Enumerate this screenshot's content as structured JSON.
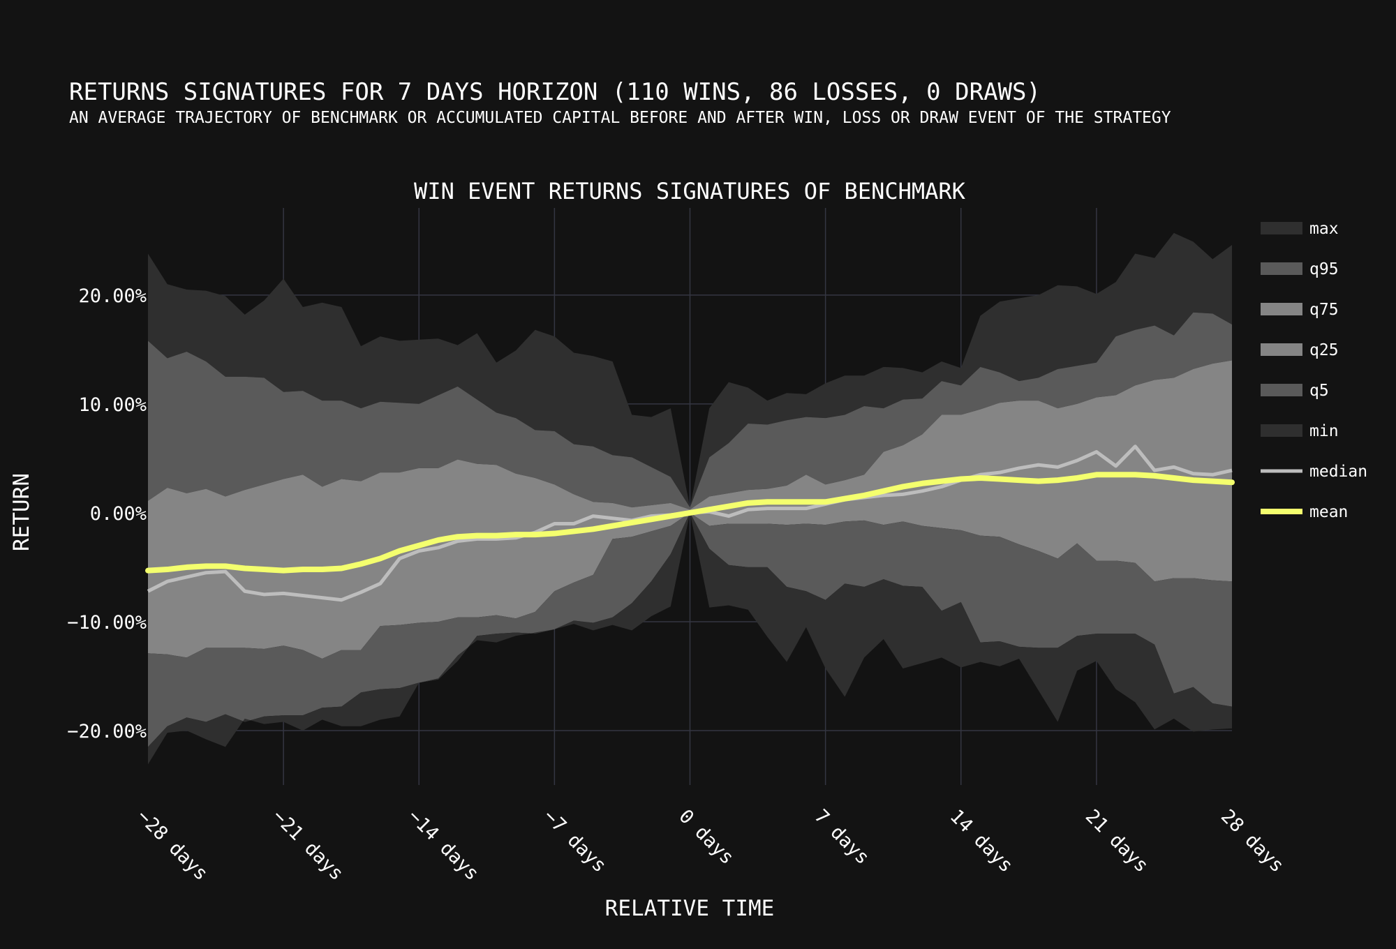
{
  "title": "RETURNS SIGNATURES FOR 7 DAYS HORIZON (110 WINS, 86 LOSSES, 0 DRAWS)",
  "subtitle": "AN AVERAGE TRAJECTORY OF BENCHMARK OR ACCUMULATED CAPITAL BEFORE AND AFTER WIN, LOSS OR DRAW EVENT OF THE STRATEGY",
  "colors": {
    "background": "#131313",
    "grid": "#343642",
    "band_outer": "#2f2f2f",
    "band_mid": "#5a5a5a",
    "band_inner": "#858585",
    "median": "#bdbdbd",
    "mean": "#f4ff6e"
  },
  "chart_data": {
    "type": "area",
    "title": "WIN EVENT RETURNS SIGNATURES OF BENCHMARK",
    "xlabel": "RELATIVE TIME",
    "ylabel": "RETURN",
    "xlim": [
      -28,
      28
    ],
    "ylim": [
      -25,
      28
    ],
    "x_ticks": [
      -28,
      -21,
      -14,
      -7,
      0,
      7,
      14,
      21,
      28
    ],
    "x_tick_labels": [
      "−28 days",
      "−21 days",
      "−14 days",
      "−7 days",
      "0 days",
      "7 days",
      "14 days",
      "21 days",
      "28 days"
    ],
    "y_ticks": [
      20,
      10,
      0,
      -10,
      -20
    ],
    "y_tick_labels": [
      "20.00%",
      "10.00%",
      "0.00%",
      "−10.00%",
      "−20.00%"
    ],
    "grid": true,
    "legend_position": "right",
    "legend": [
      "max",
      "q95",
      "q75",
      "q25",
      "q5",
      "min",
      "median",
      "mean"
    ],
    "x": [
      -28,
      -27,
      -26,
      -25,
      -24,
      -23,
      -22,
      -21,
      -20,
      -19,
      -18,
      -17,
      -16,
      -15,
      -14,
      -13,
      -12,
      -11,
      -10,
      -9,
      -8,
      -7,
      -6,
      -5,
      -4,
      -3,
      -2,
      -1,
      0,
      1,
      2,
      3,
      4,
      5,
      6,
      7,
      8,
      9,
      10,
      11,
      12,
      13,
      14,
      15,
      16,
      17,
      18,
      19,
      20,
      21,
      22,
      23,
      24,
      25,
      26,
      27,
      28
    ],
    "series": [
      {
        "name": "max",
        "values": [
          23.8,
          21.0,
          20.5,
          20.4,
          19.9,
          18.2,
          19.5,
          21.5,
          18.9,
          19.3,
          18.9,
          15.3,
          16.2,
          15.8,
          15.9,
          16.0,
          15.4,
          16.5,
          13.8,
          14.9,
          16.8,
          16.2,
          14.7,
          14.4,
          13.9,
          9.0,
          8.8,
          9.6,
          0.5,
          9.6,
          12.0,
          11.5,
          10.3,
          11.0,
          10.9,
          11.9,
          12.6,
          12.6,
          13.4,
          13.3,
          12.9,
          13.9,
          13.3,
          18.1,
          19.4,
          19.7,
          20.0,
          20.9,
          20.8,
          20.1,
          21.2,
          23.8,
          23.4,
          25.7,
          24.9,
          23.3,
          24.6
        ]
      },
      {
        "name": "q95",
        "values": [
          15.8,
          14.2,
          14.8,
          13.9,
          12.5,
          12.5,
          12.4,
          11.1,
          11.2,
          10.3,
          10.3,
          9.6,
          10.2,
          10.1,
          10.0,
          10.8,
          11.6,
          10.4,
          9.2,
          8.7,
          7.6,
          7.5,
          6.3,
          6.1,
          5.3,
          5.1,
          4.2,
          3.3,
          0.5,
          5.1,
          6.4,
          8.2,
          8.1,
          8.5,
          8.8,
          8.7,
          9.0,
          9.8,
          9.6,
          10.4,
          10.5,
          12.1,
          11.7,
          13.4,
          12.9,
          12.1,
          12.4,
          13.2,
          13.5,
          13.8,
          16.2,
          16.8,
          17.2,
          16.3,
          18.4,
          18.3,
          17.3
        ]
      },
      {
        "name": "q75",
        "values": [
          1.1,
          2.3,
          1.8,
          2.2,
          1.5,
          2.1,
          2.6,
          3.1,
          3.5,
          2.4,
          3.1,
          2.9,
          3.7,
          3.7,
          4.1,
          4.1,
          4.9,
          4.5,
          4.4,
          3.6,
          3.2,
          2.6,
          1.7,
          1.0,
          0.9,
          0.5,
          0.7,
          0.9,
          0.3,
          1.5,
          1.8,
          2.1,
          2.2,
          2.5,
          3.5,
          2.6,
          3.0,
          3.5,
          5.6,
          6.2,
          7.2,
          9.0,
          9.0,
          9.5,
          10.1,
          10.3,
          10.3,
          9.6,
          10.0,
          10.6,
          10.8,
          11.7,
          12.2,
          12.4,
          13.2,
          13.7,
          14.0
        ]
      },
      {
        "name": "q25",
        "values": [
          -12.9,
          -13.0,
          -13.3,
          -12.4,
          -12.4,
          -12.4,
          -12.5,
          -12.2,
          -12.6,
          -13.4,
          -12.6,
          -12.6,
          -10.4,
          -10.3,
          -10.1,
          -10.0,
          -9.6,
          -9.6,
          -9.4,
          -9.7,
          -9.1,
          -7.2,
          -6.4,
          -5.7,
          -2.4,
          -2.2,
          -1.7,
          -1.2,
          0.0,
          -1.2,
          -1.0,
          -1.0,
          -1.0,
          -1.1,
          -1.0,
          -1.1,
          -0.8,
          -0.7,
          -1.1,
          -0.8,
          -1.2,
          -1.4,
          -1.6,
          -2.1,
          -2.2,
          -2.9,
          -3.5,
          -4.2,
          -2.8,
          -4.4,
          -4.4,
          -4.6,
          -6.3,
          -6.0,
          -6.0,
          -6.2,
          -6.3
        ]
      },
      {
        "name": "q5",
        "values": [
          -21.5,
          -19.6,
          -18.8,
          -19.2,
          -18.5,
          -19.2,
          -18.7,
          -18.6,
          -18.6,
          -17.9,
          -17.8,
          -16.5,
          -16.2,
          -16.1,
          -15.6,
          -15.3,
          -13.6,
          -11.3,
          -11.1,
          -11.0,
          -11.1,
          -10.7,
          -9.9,
          -10.1,
          -9.6,
          -8.3,
          -6.3,
          -3.8,
          0.0,
          -3.3,
          -4.8,
          -5.0,
          -5.0,
          -6.8,
          -7.2,
          -8.0,
          -6.5,
          -6.8,
          -6.1,
          -6.7,
          -6.8,
          -9.0,
          -8.2,
          -11.9,
          -11.8,
          -12.3,
          -12.4,
          -12.4,
          -11.3,
          -11.1,
          -11.1,
          -11.1,
          -12.1,
          -16.6,
          -16.0,
          -17.5,
          -17.8
        ]
      },
      {
        "name": "min",
        "values": [
          -23.1,
          -20.2,
          -20.0,
          -20.8,
          -21.5,
          -18.9,
          -19.4,
          -19.2,
          -20.0,
          -19.0,
          -19.6,
          -19.6,
          -19.0,
          -18.7,
          -15.6,
          -15.2,
          -13.1,
          -11.7,
          -11.9,
          -11.3,
          -11.0,
          -10.7,
          -10.2,
          -10.8,
          -10.3,
          -10.8,
          -9.5,
          -8.6,
          0.0,
          -8.7,
          -8.5,
          -8.9,
          -11.4,
          -13.7,
          -10.5,
          -14.3,
          -16.9,
          -13.3,
          -11.6,
          -14.3,
          -13.8,
          -13.3,
          -14.2,
          -13.7,
          -14.1,
          -13.4,
          -16.3,
          -19.2,
          -14.5,
          -13.6,
          -16.2,
          -17.4,
          -19.9,
          -18.9,
          -20.1,
          -19.9,
          -19.8
        ]
      },
      {
        "name": "median",
        "values": [
          -7.2,
          -6.3,
          -5.9,
          -5.5,
          -5.4,
          -7.2,
          -7.5,
          -7.4,
          -7.6,
          -7.8,
          -8.0,
          -7.3,
          -6.5,
          -4.2,
          -3.5,
          -3.2,
          -2.6,
          -2.4,
          -2.4,
          -2.3,
          -1.8,
          -1.0,
          -1.0,
          -0.3,
          -0.5,
          -0.7,
          -0.3,
          -0.2,
          0.0,
          0.1,
          -0.3,
          0.3,
          0.4,
          0.4,
          0.4,
          0.8,
          1.2,
          1.4,
          1.6,
          1.7,
          2.0,
          2.4,
          3.0,
          3.5,
          3.7,
          4.1,
          4.4,
          4.2,
          4.8,
          5.6,
          4.3,
          6.1,
          3.9,
          4.2,
          3.6,
          3.5,
          3.9
        ]
      },
      {
        "name": "mean",
        "values": [
          -5.3,
          -5.2,
          -5.0,
          -4.9,
          -4.9,
          -5.1,
          -5.2,
          -5.3,
          -5.2,
          -5.2,
          -5.1,
          -4.7,
          -4.2,
          -3.5,
          -3.0,
          -2.5,
          -2.2,
          -2.1,
          -2.1,
          -2.0,
          -2.0,
          -1.9,
          -1.7,
          -1.5,
          -1.2,
          -0.9,
          -0.6,
          -0.3,
          0.0,
          0.3,
          0.6,
          0.9,
          1.0,
          1.0,
          1.0,
          1.0,
          1.3,
          1.6,
          2.0,
          2.4,
          2.7,
          2.9,
          3.1,
          3.2,
          3.1,
          3.0,
          2.9,
          3.0,
          3.2,
          3.5,
          3.5,
          3.5,
          3.4,
          3.2,
          3.0,
          2.9,
          2.8
        ]
      }
    ]
  }
}
